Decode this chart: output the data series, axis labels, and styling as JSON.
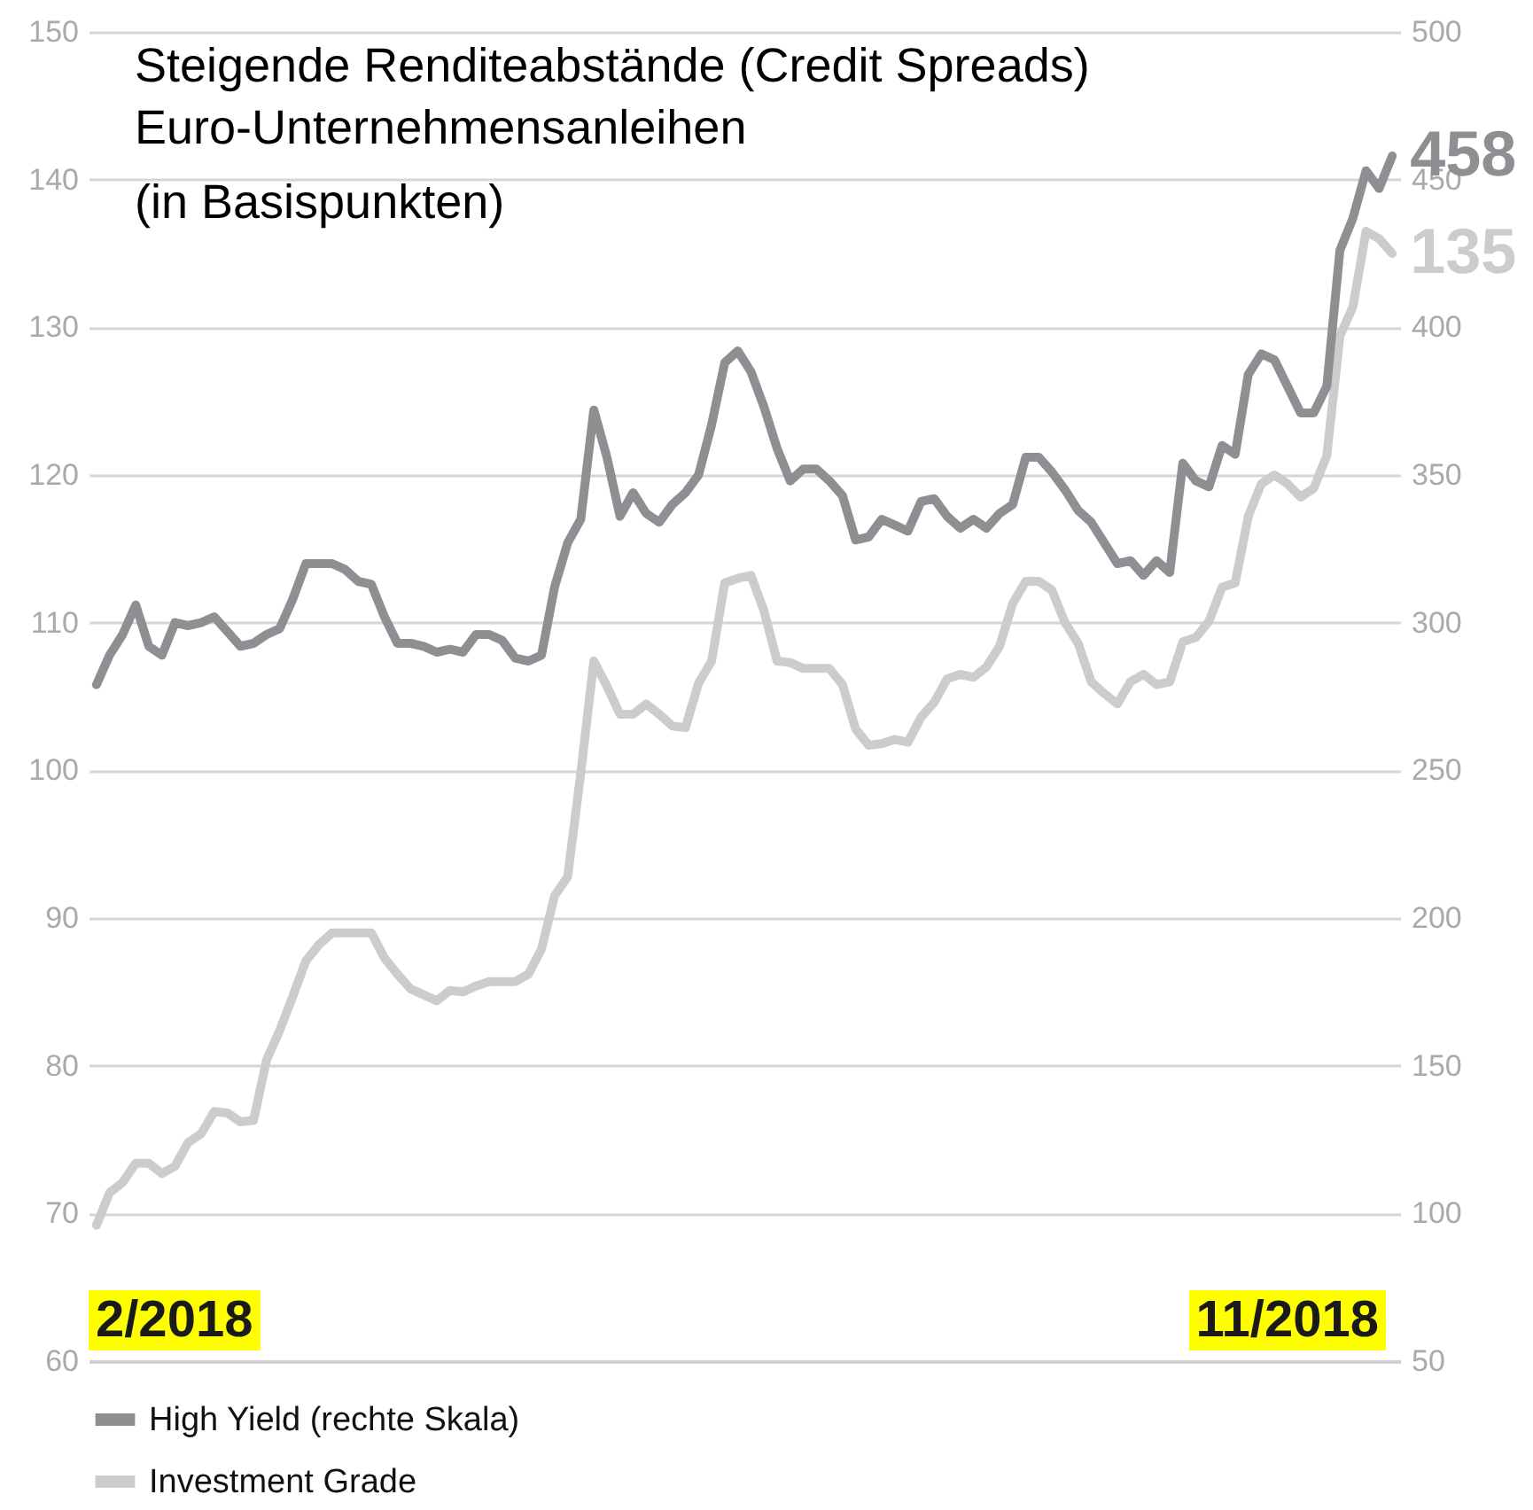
{
  "chart_data": {
    "type": "line",
    "title": "Steigende Renditeabstände (Credit Spreads)",
    "subtitle": "Euro-Unternehmensanleihen\n(in Basispunkten)",
    "annotations": [
      "2/2018",
      "11/2018"
    ],
    "categories": [
      null,
      null,
      null,
      null,
      null,
      null,
      null,
      null,
      null,
      null,
      null,
      null,
      null,
      null,
      null,
      null,
      null,
      null,
      null,
      null,
      null,
      null,
      null,
      null,
      null,
      null,
      null,
      null,
      null,
      null,
      null,
      null,
      null,
      null,
      null,
      null,
      null,
      null,
      null,
      null,
      null,
      null,
      null,
      null,
      null,
      null,
      null,
      null,
      null,
      null,
      null,
      null,
      null,
      null,
      null,
      null,
      null,
      null,
      null,
      null,
      null,
      null,
      null,
      null,
      null,
      null,
      null,
      null,
      null,
      null,
      null,
      null,
      null,
      null,
      null,
      null,
      null,
      null,
      null,
      null,
      null,
      null,
      null,
      null,
      null,
      null,
      null,
      null,
      null,
      null,
      null,
      null,
      null,
      null,
      null,
      null,
      null,
      null,
      null,
      null
    ],
    "ylim": [
      60,
      150
    ],
    "yticks": [
      60,
      70,
      80,
      90,
      100,
      110,
      120,
      130,
      140,
      150
    ],
    "y2lim": [
      50,
      500
    ],
    "y2ticks": [
      50,
      100,
      150,
      200,
      250,
      300,
      350,
      400,
      450,
      500
    ],
    "grid": "y",
    "legend": "bottom left",
    "line_style": "solid",
    "series": [
      {
        "name": "High Yield (rechte Skala)",
        "color": "#8e8e93",
        "axis": "y2",
        "values": [
          279,
          289,
          296,
          306,
          292,
          289,
          300,
          299,
          300,
          302,
          297,
          292,
          293,
          296,
          298,
          308,
          320,
          320,
          320,
          318,
          314,
          313,
          302,
          293,
          293,
          292,
          290,
          291,
          290,
          296,
          296,
          294,
          288,
          287,
          289,
          312,
          327,
          335,
          372,
          356,
          336,
          344,
          337,
          334,
          340,
          344,
          350,
          367,
          388,
          392,
          385,
          373,
          359,
          348,
          352,
          352,
          348,
          343,
          328,
          329,
          335,
          333,
          331,
          341,
          342,
          336,
          332,
          335,
          332,
          337,
          340,
          356,
          356,
          351,
          345,
          338,
          334,
          327,
          320,
          321,
          316,
          321,
          317,
          354,
          348,
          346,
          360,
          357,
          384,
          391,
          389,
          380,
          371,
          371,
          380,
          426,
          437,
          453,
          447,
          458
        ],
        "value_labels": [
          null,
          null,
          null,
          null,
          null,
          null,
          null,
          null,
          null,
          null,
          null,
          null,
          null,
          null,
          null,
          null,
          null,
          null,
          null,
          null,
          null,
          null,
          null,
          null,
          null,
          null,
          null,
          null,
          null,
          null,
          null,
          null,
          null,
          null,
          null,
          null,
          null,
          null,
          null,
          null,
          null,
          null,
          null,
          null,
          null,
          null,
          null,
          null,
          null,
          null,
          null,
          null,
          null,
          null,
          null,
          null,
          null,
          null,
          null,
          null,
          null,
          null,
          null,
          null,
          null,
          null,
          null,
          null,
          null,
          null,
          null,
          null,
          null,
          null,
          null,
          null,
          null,
          null,
          null,
          null,
          null,
          null,
          null,
          null,
          null,
          null,
          null,
          null,
          null,
          null,
          null,
          null,
          null,
          null,
          null,
          null,
          null,
          null,
          null,
          "458"
        ]
      },
      {
        "name": "Investment Grade",
        "color": "#cccccc",
        "values": [
          69.2,
          71.4,
          72.1,
          73.4,
          73.4,
          72.7,
          73.2,
          74.8,
          75.4,
          76.9,
          76.8,
          76.2,
          76.3,
          80.4,
          82.4,
          84.7,
          87.1,
          88.2,
          89,
          89,
          89,
          89,
          87.3,
          86.2,
          85.2,
          84.8,
          84.4,
          85.1,
          85.0,
          85.4,
          85.7,
          85.7,
          85.7,
          86.2,
          87.9,
          91.5,
          92.8,
          99.8,
          107.4,
          105.7,
          103.8,
          103.8,
          104.5,
          103.8,
          103.0,
          102.9,
          105.9,
          107.4,
          112.7,
          113.0,
          113.2,
          110.8,
          107.4,
          107.3,
          106.9,
          106.9,
          106.9,
          105.8,
          102.8,
          101.7,
          101.8,
          102.1,
          101.9,
          103.6,
          104.6,
          106.2,
          106.5,
          106.3,
          107.0,
          108.4,
          111.3,
          112.8,
          112.8,
          112.2,
          110.0,
          108.6,
          106.0,
          105.2,
          104.5,
          106.0,
          106.5,
          105.8,
          106.0,
          108.7,
          109.0,
          110.1,
          112.4,
          112.7,
          117.2,
          119.4,
          120.0,
          119.4,
          118.5,
          119.1,
          121.3,
          129.4,
          131.4,
          136.5,
          136.0,
          135
        ],
        "value_labels": [
          null,
          null,
          null,
          null,
          null,
          null,
          null,
          null,
          null,
          null,
          null,
          null,
          null,
          null,
          null,
          null,
          null,
          null,
          null,
          null,
          null,
          null,
          null,
          null,
          null,
          null,
          null,
          null,
          null,
          null,
          null,
          null,
          null,
          null,
          null,
          null,
          null,
          null,
          null,
          null,
          null,
          null,
          null,
          null,
          null,
          null,
          null,
          null,
          null,
          null,
          null,
          null,
          null,
          null,
          null,
          null,
          null,
          null,
          null,
          null,
          null,
          null,
          null,
          null,
          null,
          null,
          null,
          null,
          null,
          null,
          null,
          null,
          null,
          null,
          null,
          null,
          null,
          null,
          null,
          null,
          null,
          null,
          null,
          null,
          null,
          null,
          null,
          null,
          null,
          null,
          null,
          null,
          null,
          null,
          null,
          null,
          null,
          null,
          null,
          "135"
        ]
      }
    ]
  }
}
